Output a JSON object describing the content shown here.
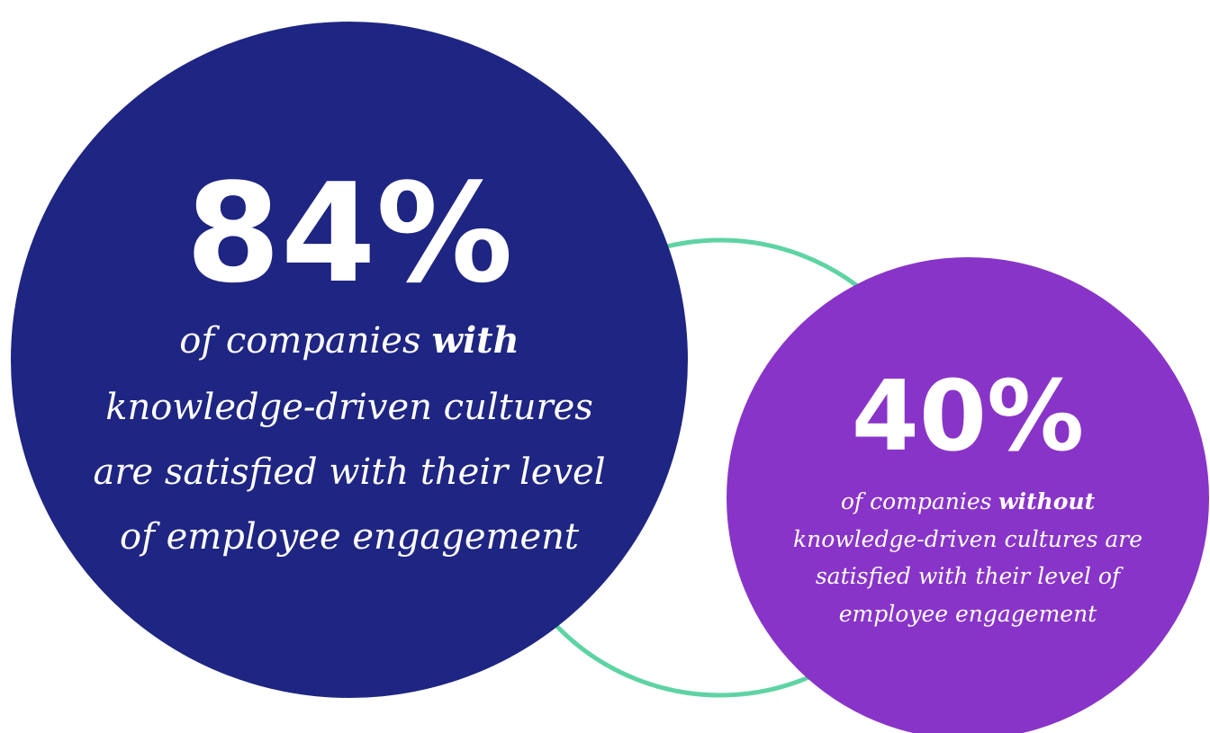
{
  "circles": [
    {
      "stat": "84%",
      "prefix": "of companies",
      "emphasis": "with",
      "lines": [
        "knowledge-driven cultures",
        "are satisfied with their level",
        "of employee engagement"
      ]
    },
    {
      "stat": "40%",
      "prefix": "of companies",
      "emphasis": "without",
      "lines": [
        "knowledge-driven cultures are",
        "satisfied with their level of",
        "employee engagement"
      ]
    }
  ]
}
